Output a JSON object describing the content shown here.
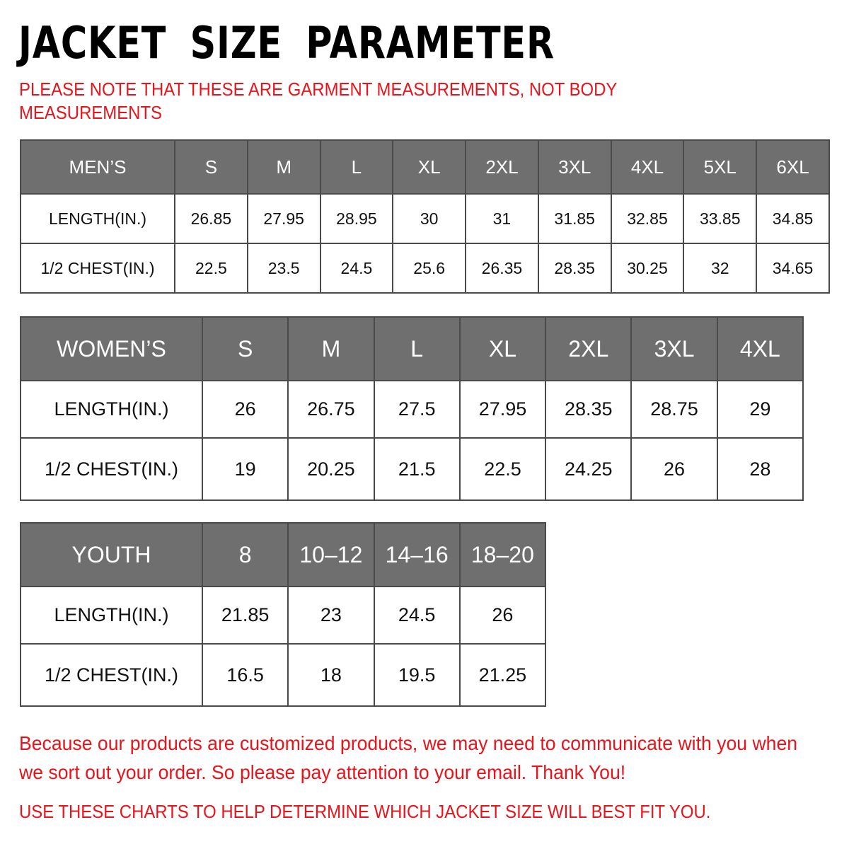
{
  "title": "JACKET SIZE PARAMETER",
  "note_line1": "PLEASE NOTE THAT THESE ARE GARMENT MEASUREMENTS, NOT BODY",
  "note_line2": "MEASUREMENTS",
  "colors": {
    "header_bg": "#6f6f6f",
    "note_red": "#e8141b"
  },
  "tables": {
    "men": {
      "headers": [
        "MEN’S",
        "S",
        "M",
        "L",
        "XL",
        "2XL",
        "3XL",
        "4XL",
        "5XL",
        "6XL"
      ],
      "rows": [
        [
          "LENGTH(IN.)",
          "26.85",
          "27.95",
          "28.95",
          "30",
          "31",
          "31.85",
          "32.85",
          "33.85",
          "34.85"
        ],
        [
          "1/2 CHEST(IN.)",
          "22.5",
          "23.5",
          "24.5",
          "25.6",
          "26.35",
          "28.35",
          "30.25",
          "32",
          "34.65"
        ]
      ]
    },
    "women": {
      "headers": [
        "WOMEN’S",
        "S",
        "M",
        "L",
        "XL",
        "2XL",
        "3XL",
        "4XL"
      ],
      "rows": [
        [
          "LENGTH(IN.)",
          "26",
          "26.75",
          "27.5",
          "27.95",
          "28.35",
          "28.75",
          "29"
        ],
        [
          "1/2 CHEST(IN.)",
          "19",
          "20.25",
          "21.5",
          "22.5",
          "24.25",
          "26",
          "28"
        ]
      ]
    },
    "youth": {
      "headers": [
        "YOUTH",
        "8",
        "10–12",
        "14–16",
        "18–20"
      ],
      "rows": [
        [
          "LENGTH(IN.)",
          "21.85",
          "23",
          "24.5",
          "26"
        ],
        [
          "1/2 CHEST(IN.)",
          "16.5",
          "18",
          "19.5",
          "21.25"
        ]
      ]
    }
  },
  "footer_text": "Because our products are customized products, we may need to communicate with you when we sort out your order. So please pay attention to your email. Thank You!",
  "footer_caps": "USE THESE CHARTS TO HELP DETERMINE WHICH JACKET SIZE WILL BEST FIT YOU."
}
